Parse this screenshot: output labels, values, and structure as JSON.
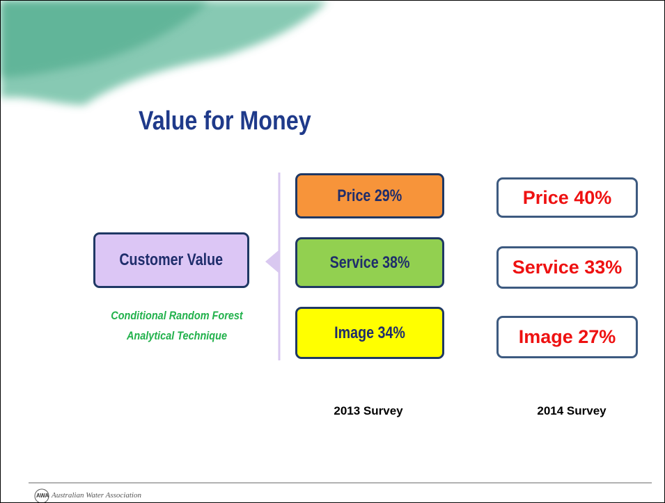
{
  "title": "Value for Money",
  "center": {
    "label": "Customer Value",
    "note": [
      "Conditional Random Forest",
      "Analytical Technique"
    ]
  },
  "surveys": [
    {
      "label": "2013 Survey",
      "items": [
        "Price 29%",
        "Service 38%",
        "Image 34%"
      ]
    },
    {
      "label": "2014 Survey",
      "items": [
        "Price 40%",
        "Service 33%",
        "Image 27%"
      ]
    }
  ],
  "footer": {
    "logo": "AWA",
    "text": "Australian Water Association"
  }
}
